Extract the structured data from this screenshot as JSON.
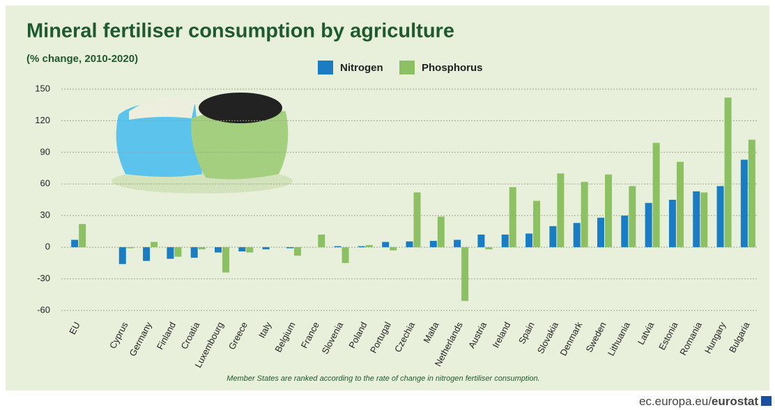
{
  "chart_data": {
    "type": "bar",
    "title": "Mineral fertiliser consumption by agriculture",
    "subtitle": "(% change, 2010-2020)",
    "note": "Member States are ranked according to the rate of change in nitrogen fertiliser consumption.",
    "source_domain": "ec.europa.eu/",
    "source_brand": "eurostat",
    "categories": [
      "EU",
      null,
      "Cyprus",
      "Germany",
      "Finland",
      "Croatia",
      "Luxembourg",
      "Greece",
      "Italy",
      "Belgium",
      "France",
      "Slovenia",
      "Poland",
      "Portugal",
      "Czechia",
      "Malta",
      "Netherlands",
      "Austria",
      "Ireland",
      "Spain",
      "Slovakia",
      "Denmark",
      "Sweden",
      "Lithuania",
      "Latvia",
      "Estonia",
      "Romania",
      "Hungary",
      "Bulgaria"
    ],
    "series": [
      {
        "name": "Nitrogen",
        "color": "#1a7dc4",
        "values": [
          7,
          null,
          -16,
          -13,
          -11,
          -10,
          -5,
          -4,
          -2,
          -1,
          0,
          1,
          1,
          5,
          5.5,
          6,
          7,
          12,
          12,
          13,
          20,
          23,
          28,
          30,
          42,
          45,
          53,
          58,
          83
        ]
      },
      {
        "name": "Phosphorus",
        "color": "#8cc063",
        "values": [
          22,
          null,
          -1,
          5,
          -9,
          -2,
          -24,
          -5,
          0,
          -8,
          12,
          -15,
          2,
          -3,
          52,
          29,
          -51,
          -2,
          57,
          44,
          70,
          62,
          69,
          58,
          99,
          81,
          52,
          142,
          102
        ]
      }
    ],
    "ylim": [
      -60,
      150
    ],
    "yticks": [
      -60,
      -30,
      0,
      30,
      60,
      90,
      120,
      150
    ],
    "grid": true
  }
}
